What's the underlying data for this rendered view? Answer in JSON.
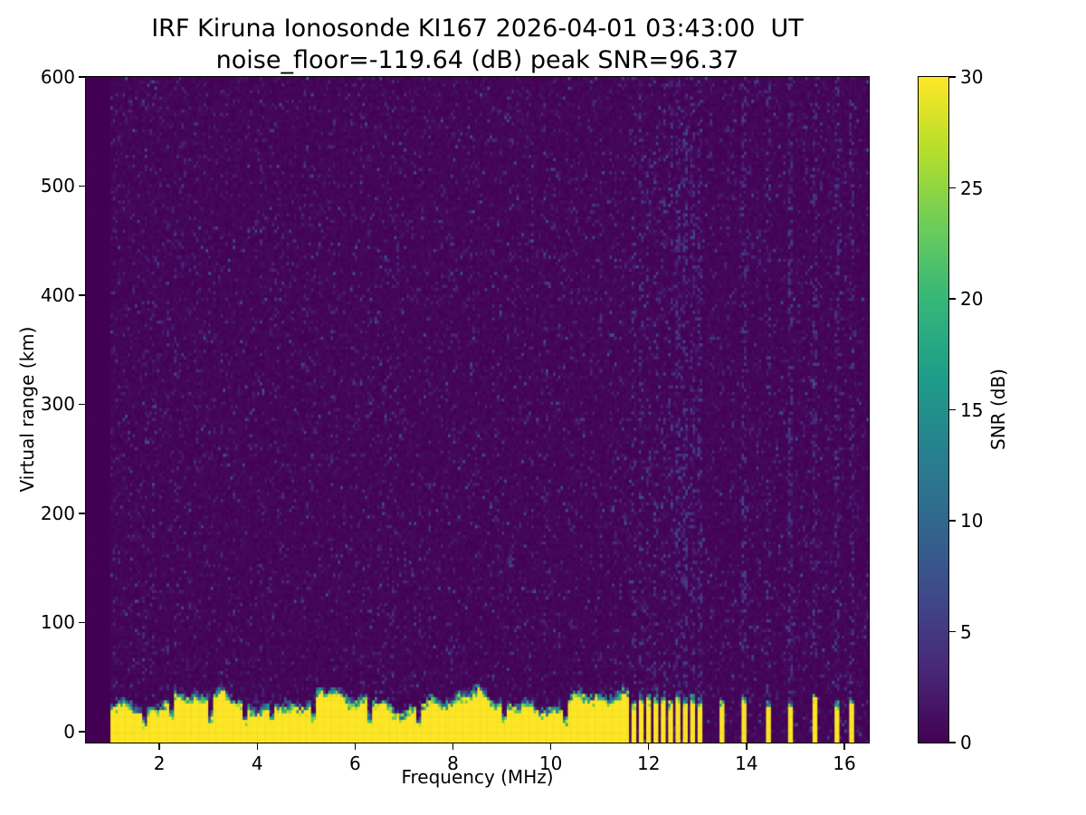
{
  "chart_data": {
    "type": "heatmap",
    "title": "IRF Kiruna Ionosonde KI167 2026-04-01 03:43:00  UT",
    "subtitle": "noise_floor=-119.64 (dB) peak SNR=96.37",
    "station": "KI167",
    "timestamp_ut": "2026-04-01 03:43:00",
    "noise_floor_db": -119.64,
    "peak_snr_db": 96.37,
    "xlabel": "Frequency (MHz)",
    "ylabel": "Virtual range (km)",
    "xlim": [
      0.5,
      16.5
    ],
    "ylim": [
      -10,
      600
    ],
    "x_ticks": [
      2,
      4,
      6,
      8,
      10,
      12,
      14,
      16
    ],
    "y_ticks": [
      0,
      100,
      200,
      300,
      400,
      500,
      600
    ],
    "colorbar": {
      "label": "SNR (dB)",
      "min": 0,
      "max": 30,
      "ticks": [
        0,
        5,
        10,
        15,
        20,
        25,
        30
      ],
      "colormap": "viridis"
    },
    "colormap_stops": [
      "#440154",
      "#482878",
      "#3e4a89",
      "#31688e",
      "#26828e",
      "#1f9e89",
      "#35b779",
      "#6dcd59",
      "#b4de2c",
      "#fde725"
    ],
    "background_noise_snr_db": [
      0,
      8
    ],
    "ground_clutter": {
      "freq_start_mhz": 1.0,
      "continuous_until_mhz": 11.6,
      "top_mean_km": 31,
      "top_variation_km": 13,
      "edge_gradient_km": 8,
      "notch_freqs_mhz": [
        1.7,
        2.25,
        3.05,
        3.75,
        4.3,
        5.15,
        6.3,
        7.3,
        9.05,
        10.3
      ],
      "dense_stripes": {
        "start_mhz": 11.65,
        "end_mhz": 13.15,
        "step_mhz": 0.15,
        "width_mhz": 0.08
      },
      "sparse_stripe_freqs_mhz": [
        13.5,
        13.95,
        14.45,
        14.9,
        15.4,
        15.85,
        16.15
      ]
    }
  }
}
